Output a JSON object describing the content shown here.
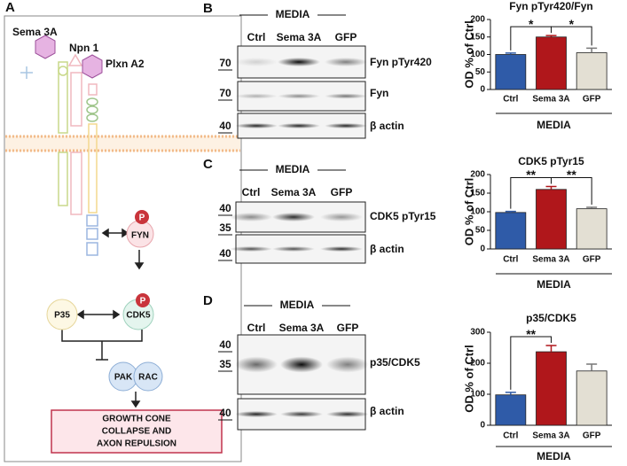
{
  "panels": {
    "A": "A",
    "B": "B",
    "C": "C",
    "D": "D"
  },
  "diagram": {
    "sema": "Sema 3A",
    "npn": "Npn 1",
    "plxn": "Plxn A2",
    "fyn": "FYN",
    "fyn_p": "P",
    "cdk5": "CDK5",
    "cdk5_p": "P",
    "p35": "P35",
    "pak": "PAK",
    "rac": "RAC",
    "outcome": [
      "GROWTH CONE",
      "COLLAPSE AND",
      "AXON REPULSION"
    ]
  },
  "blots": [
    {
      "condition": "MEDIA",
      "lanes": [
        "Ctrl",
        "Sema 3A",
        "GFP"
      ],
      "markers": [
        "70",
        "70",
        "40"
      ],
      "labels": [
        "Fyn pTyr420",
        "Fyn",
        "β actin"
      ]
    },
    {
      "condition": "MEDIA",
      "lanes": [
        "Ctrl",
        "Sema 3A",
        "GFP"
      ],
      "markers": [
        "40",
        "35",
        "40"
      ],
      "labels": [
        "CDK5 pTyr15",
        "β actin"
      ]
    },
    {
      "condition": "MEDIA",
      "lanes": [
        "Ctrl",
        "Sema 3A",
        "GFP"
      ],
      "markers": [
        "40",
        "35",
        "40"
      ],
      "labels": [
        "p35/CDK5",
        "β actin"
      ]
    }
  ],
  "chart_data": [
    {
      "type": "bar",
      "title": "Fyn pTyr420/Fyn",
      "y_label": "OD % of Ctrl",
      "x_label": "MEDIA",
      "categories": [
        "Ctrl",
        "Sema 3A",
        "GFP"
      ],
      "values": [
        100,
        150,
        105
      ],
      "errors": [
        4,
        4,
        13
      ],
      "colors": [
        "#2f5ba8",
        "#b0171b",
        "#e3dfd3"
      ],
      "ylim": [
        0,
        200
      ],
      "yticks": [
        0,
        50,
        100,
        150,
        200
      ],
      "annotations": [
        {
          "text": "*",
          "categories": [
            "Ctrl",
            "Sema 3A"
          ]
        },
        {
          "text": "*",
          "categories": [
            "Sema 3A",
            "GFP"
          ]
        }
      ]
    },
    {
      "type": "bar",
      "title": "CDK5 pTyr15",
      "y_label": "OD % of Ctrl",
      "x_label": "MEDIA",
      "categories": [
        "Ctrl",
        "Sema 3A",
        "GFP"
      ],
      "values": [
        98,
        160,
        108
      ],
      "errors": [
        3,
        8,
        4
      ],
      "colors": [
        "#2f5ba8",
        "#b0171b",
        "#e3dfd3"
      ],
      "ylim": [
        0,
        200
      ],
      "yticks": [
        0,
        50,
        100,
        150,
        200
      ],
      "annotations": [
        {
          "text": "**",
          "categories": [
            "Ctrl",
            "Sema 3A"
          ]
        },
        {
          "text": "**",
          "categories": [
            "Sema 3A",
            "GFP"
          ]
        }
      ]
    },
    {
      "type": "bar",
      "title": "p35/CDK5",
      "y_label": "OD % of Ctrl",
      "x_label": "MEDIA",
      "categories": [
        "Ctrl",
        "Sema 3A",
        "GFP"
      ],
      "values": [
        98,
        237,
        175
      ],
      "errors": [
        8,
        20,
        22
      ],
      "colors": [
        "#2f5ba8",
        "#b0171b",
        "#e3dfd3"
      ],
      "ylim": [
        0,
        300
      ],
      "yticks": [
        0,
        100,
        200,
        300
      ],
      "annotations": [
        {
          "text": "**",
          "categories": [
            "Ctrl",
            "Sema 3A"
          ]
        }
      ]
    }
  ]
}
